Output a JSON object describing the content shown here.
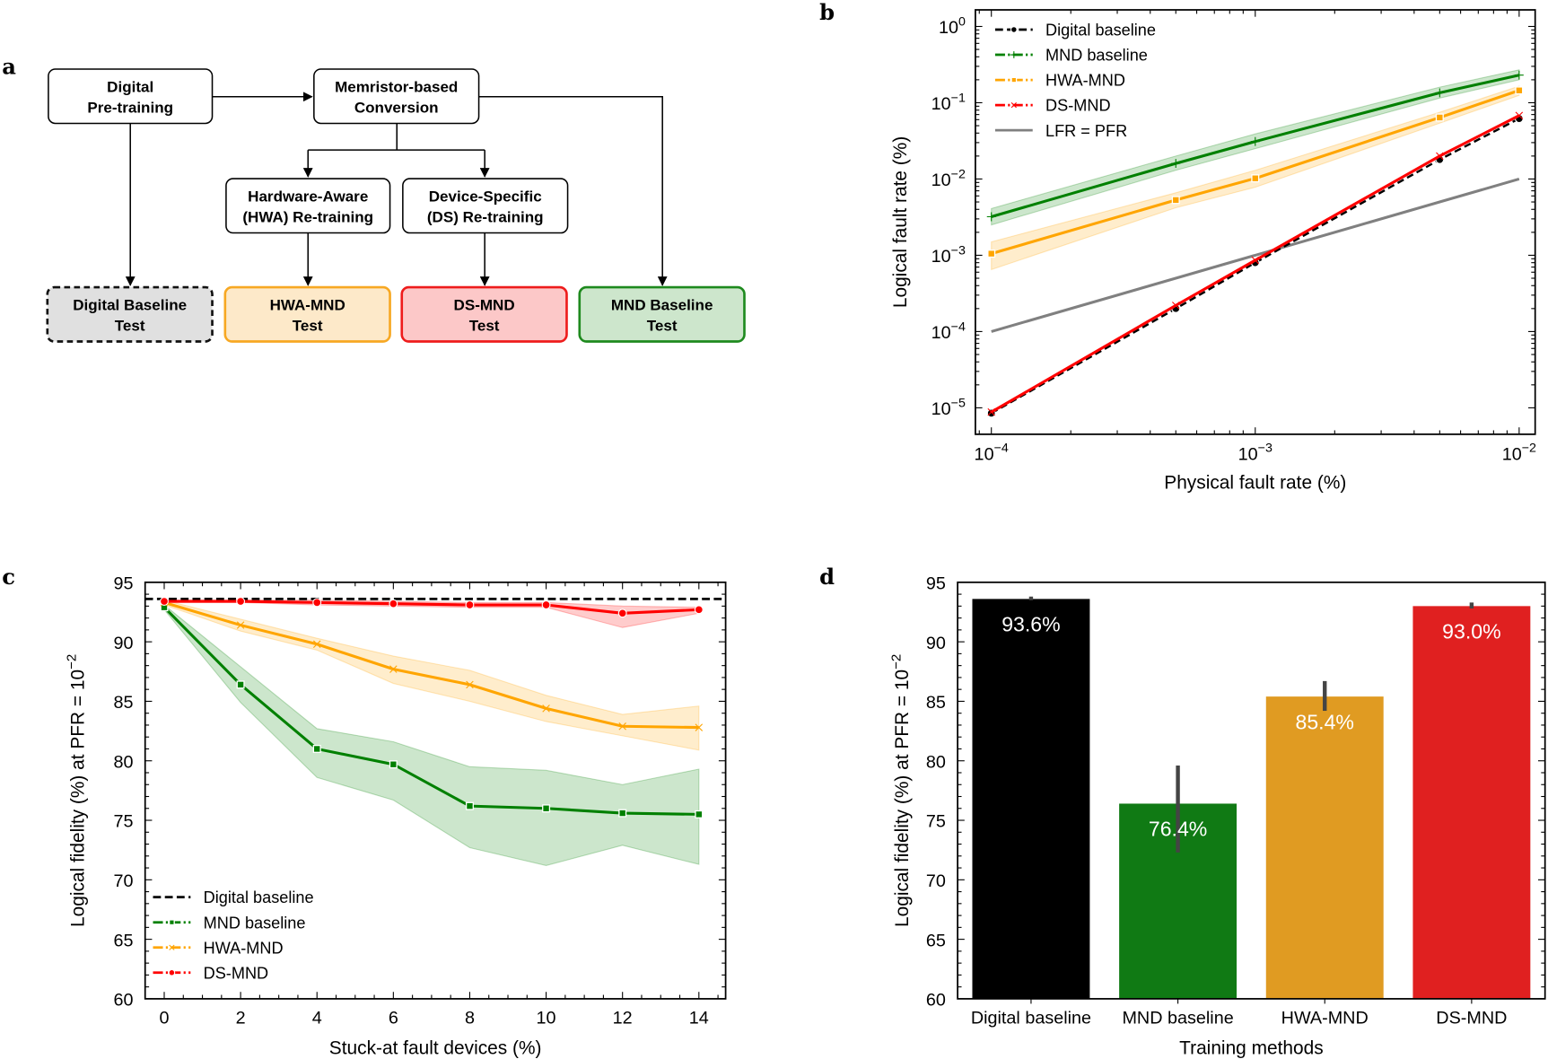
{
  "panel_labels": {
    "a": "a",
    "b": "b",
    "c": "c",
    "d": "d"
  },
  "diagram": {
    "nodes": {
      "pretrain": [
        "Digital",
        "Pre-training"
      ],
      "conversion": [
        "Memristor-based",
        "Conversion"
      ],
      "hwa": [
        "Hardware-Aware",
        "(HWA) Re-training"
      ],
      "ds": [
        "Device-Specific",
        "(DS) Re-training"
      ],
      "digital_test": [
        "Digital Baseline",
        "Test"
      ],
      "hwa_test": [
        "HWA-MND",
        "Test"
      ],
      "ds_test": [
        "DS-MND",
        "Test"
      ],
      "mnd_test": [
        "MND Baseline",
        "Test"
      ]
    }
  },
  "colors": {
    "digital": "#000000",
    "mnd": "#008000",
    "hwa": "#ffa500",
    "ds": "#ff0000",
    "lfr": "#808080",
    "bar_mnd": "#107a14",
    "bar_hwa": "#e09b22",
    "bar_ds": "#e02020"
  },
  "chart_data": [
    {
      "panel": "b",
      "type": "line",
      "xlabel": "Physical fault rate (%)",
      "ylabel": "Logical fault rate (%)",
      "xscale": "log",
      "yscale": "log",
      "xlim": [
        8.7e-05,
        0.0115
      ],
      "ylim": [
        4.5e-06,
        1.65
      ],
      "x_ticks": [
        "10^-4",
        "10^-3",
        "10^-2"
      ],
      "y_ticks": [
        "10^0",
        "10^-1",
        "10^-2",
        "10^-3",
        "10^-4",
        "10^-5"
      ],
      "legend": "top-left",
      "x": [
        0.0001,
        0.0005,
        0.001,
        0.005,
        0.01
      ],
      "series": [
        {
          "name": "Digital baseline",
          "marker": "dot",
          "dash": "dashed",
          "values": [
            8.5e-06,
            0.0002,
            0.0008,
            0.018,
            0.062
          ]
        },
        {
          "name": "MND baseline",
          "marker": "plus",
          "dash": "dash-dot",
          "values": [
            0.0032,
            0.016,
            0.031,
            0.135,
            0.23
          ],
          "lower": [
            0.0025,
            0.013,
            0.025,
            0.115,
            0.2
          ],
          "upper": [
            0.0041,
            0.02,
            0.039,
            0.16,
            0.27
          ]
        },
        {
          "name": "HWA-MND",
          "marker": "square",
          "dash": "dash-dot",
          "values": [
            0.00105,
            0.0053,
            0.0102,
            0.064,
            0.145
          ],
          "lower": [
            0.00065,
            0.0042,
            0.0078,
            0.054,
            0.125
          ],
          "upper": [
            0.0015,
            0.0066,
            0.013,
            0.075,
            0.165
          ]
        },
        {
          "name": "DS-MND",
          "marker": "x",
          "dash": "dash-dot",
          "values": [
            8.8e-06,
            0.00022,
            0.00086,
            0.02,
            0.068
          ]
        },
        {
          "name": "LFR = PFR",
          "marker": "none",
          "dash": "solid",
          "values": [
            0.0001,
            0.0005,
            0.001,
            0.005,
            0.01
          ]
        }
      ]
    },
    {
      "panel": "c",
      "type": "line",
      "xlabel": "Stuck-at fault devices (%)",
      "ylabel": "Logical fidelity (%) at PFR = 10^-2",
      "xlim": [
        -0.5,
        14.7
      ],
      "ylim": [
        60,
        95
      ],
      "x_ticks": [
        0,
        2,
        4,
        6,
        8,
        10,
        12,
        14
      ],
      "y_ticks": [
        60,
        65,
        70,
        75,
        80,
        85,
        90,
        95
      ],
      "legend": "bottom-left",
      "x": [
        0,
        2,
        4,
        6,
        8,
        10,
        12,
        14
      ],
      "series": [
        {
          "name": "Digital baseline",
          "marker": "none",
          "dash": "dashed",
          "values": [
            93.6,
            93.6,
            93.6,
            93.6,
            93.6,
            93.6,
            93.6,
            93.6
          ]
        },
        {
          "name": "MND baseline",
          "marker": "square",
          "dash": "dash-dot",
          "values": [
            92.9,
            86.4,
            81.0,
            79.7,
            76.2,
            76.0,
            75.6,
            75.5
          ],
          "lower": [
            92.7,
            84.9,
            78.6,
            76.7,
            72.7,
            71.2,
            72.9,
            71.3
          ],
          "upper": [
            93.1,
            87.9,
            82.7,
            81.6,
            79.5,
            79.2,
            78.0,
            79.3
          ]
        },
        {
          "name": "HWA-MND",
          "marker": "x",
          "dash": "dash-dot",
          "values": [
            93.3,
            91.4,
            89.8,
            87.7,
            86.4,
            84.4,
            82.9,
            82.8
          ],
          "lower": [
            93.1,
            90.9,
            89.3,
            86.5,
            85.0,
            83.3,
            82.1,
            80.9
          ],
          "upper": [
            93.5,
            91.9,
            90.3,
            88.8,
            87.6,
            85.5,
            83.9,
            84.6
          ]
        },
        {
          "name": "DS-MND",
          "marker": "dot",
          "dash": "dash-dot",
          "values": [
            93.4,
            93.4,
            93.3,
            93.2,
            93.1,
            93.1,
            92.4,
            92.7
          ],
          "lower": [
            93.3,
            93.3,
            93.1,
            93.0,
            92.9,
            92.9,
            91.2,
            92.4
          ],
          "upper": [
            93.5,
            93.5,
            93.5,
            93.4,
            93.3,
            93.3,
            93.0,
            92.9
          ]
        }
      ]
    },
    {
      "panel": "d",
      "type": "bar",
      "xlabel": "Training methods",
      "ylabel": "Logical fidelity (%) at PFR = 10^-2",
      "ylim": [
        60,
        95
      ],
      "y_ticks": [
        60,
        65,
        70,
        75,
        80,
        85,
        90,
        95
      ],
      "categories": [
        "Digital baseline",
        "MND baseline",
        "HWA-MND",
        "DS-MND"
      ],
      "values": [
        93.6,
        76.4,
        85.4,
        93.0
      ],
      "data_labels": [
        "93.6%",
        "76.4%",
        "85.4%",
        "93.0%"
      ],
      "error_low": [
        93.5,
        72.3,
        84.2,
        92.8
      ],
      "error_high": [
        93.8,
        79.6,
        86.7,
        93.3
      ]
    }
  ]
}
